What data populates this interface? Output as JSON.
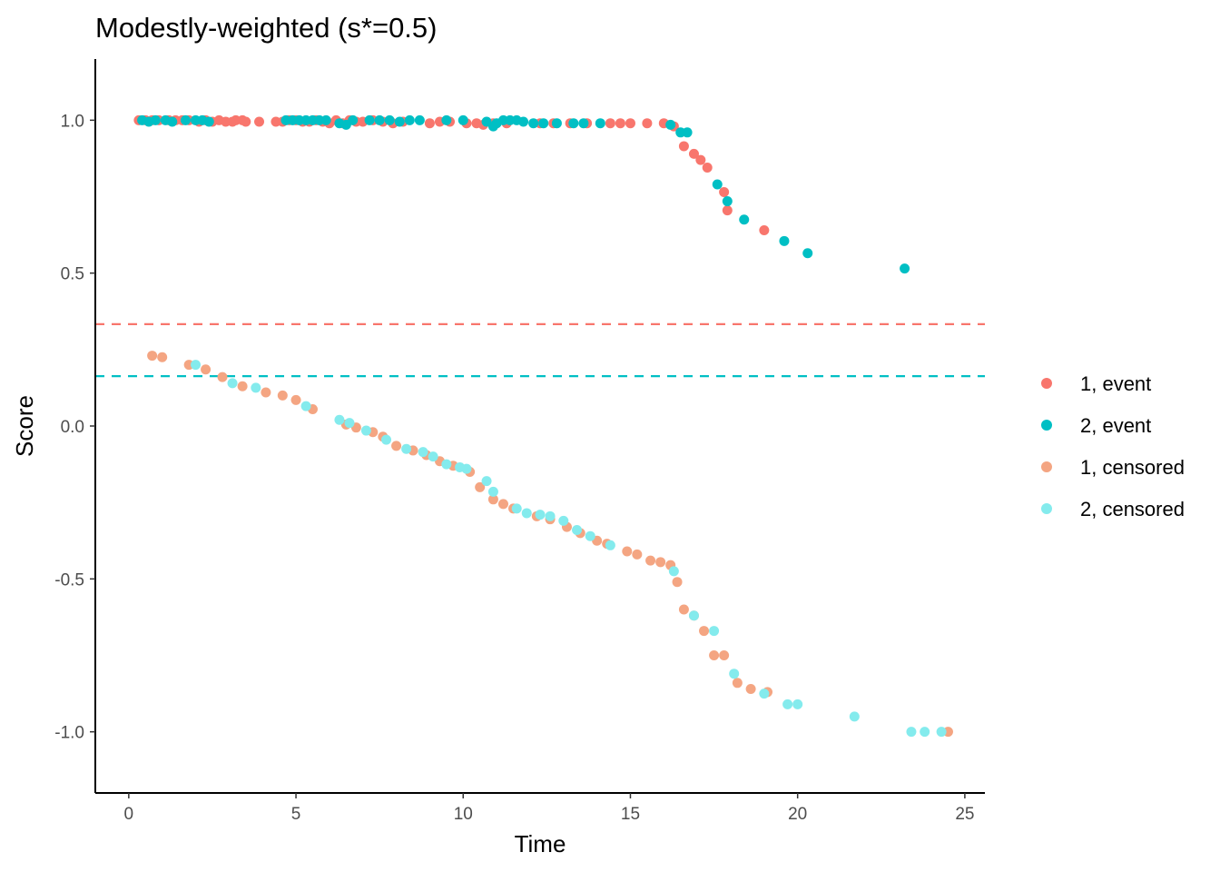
{
  "chart_data": {
    "type": "scatter",
    "title": "Modestly-weighted (s*=0.5)",
    "xlabel": "Time",
    "ylabel": "Score",
    "xlim": [
      -1.0,
      25.6
    ],
    "ylim": [
      -1.2,
      1.2
    ],
    "xticks": [
      0,
      5,
      10,
      15,
      20,
      25
    ],
    "xtick_labels": [
      "0",
      "5",
      "10",
      "15",
      "20",
      "25"
    ],
    "yticks": [
      1.0,
      0.5,
      0.0,
      -0.5,
      -1.0
    ],
    "ytick_labels": [
      "1.0",
      "0.5",
      "0.0",
      "-0.5",
      "-1.0"
    ],
    "grid": false,
    "legend_position": "right",
    "hlines": [
      {
        "y": 0.333,
        "color": "#F8766D",
        "style": "dashed"
      },
      {
        "y": 0.163,
        "color": "#00BFC4",
        "style": "dashed"
      }
    ],
    "series": [
      {
        "name": "1, event",
        "color": "#F8766D",
        "x": [
          0.3,
          0.5,
          0.7,
          0.9,
          1.2,
          1.4,
          1.6,
          1.8,
          2.1,
          2.3,
          2.5,
          2.7,
          2.9,
          3.1,
          3.2,
          3.4,
          3.5,
          3.9,
          4.4,
          4.6,
          4.8,
          5.0,
          5.2,
          5.4,
          5.6,
          5.8,
          6.0,
          6.2,
          6.4,
          6.6,
          6.8,
          7.0,
          7.3,
          7.6,
          7.9,
          8.2,
          9.0,
          9.3,
          9.6,
          10.1,
          10.4,
          10.6,
          10.9,
          11.3,
          12.3,
          12.7,
          13.2,
          13.7,
          14.4,
          14.7,
          15.0,
          15.5,
          16.0,
          16.3,
          16.6,
          16.9,
          17.1,
          17.3,
          17.8,
          17.9,
          19.0
        ],
        "y": [
          1.0,
          1.0,
          1.0,
          1.0,
          1.0,
          1.0,
          1.0,
          1.0,
          0.995,
          1.0,
          0.995,
          1.0,
          0.995,
          0.995,
          1.0,
          1.0,
          0.995,
          0.995,
          0.995,
          0.995,
          1.0,
          1.0,
          0.995,
          0.995,
          1.0,
          0.995,
          0.99,
          1.0,
          0.99,
          1.0,
          0.995,
          0.995,
          1.0,
          0.995,
          0.99,
          0.995,
          0.99,
          0.995,
          0.995,
          0.99,
          0.99,
          0.985,
          0.99,
          0.99,
          0.99,
          0.99,
          0.99,
          0.99,
          0.99,
          0.99,
          0.99,
          0.99,
          0.99,
          0.98,
          0.915,
          0.89,
          0.87,
          0.845,
          0.765,
          0.705,
          0.64
        ]
      },
      {
        "name": "2, event",
        "color": "#00BFC4",
        "x": [
          0.4,
          0.6,
          0.8,
          1.1,
          1.3,
          1.7,
          2.0,
          2.2,
          2.4,
          4.7,
          4.9,
          5.1,
          5.3,
          5.5,
          5.7,
          5.9,
          6.3,
          6.5,
          6.7,
          7.2,
          7.5,
          7.8,
          8.1,
          8.4,
          8.7,
          9.5,
          10.0,
          10.7,
          10.9,
          11.0,
          11.2,
          11.4,
          11.6,
          11.8,
          12.1,
          12.4,
          12.8,
          13.3,
          13.6,
          14.1,
          16.2,
          16.5,
          16.7,
          17.6,
          17.9,
          18.4,
          19.6,
          20.3,
          23.2
        ],
        "y": [
          1.0,
          0.995,
          1.0,
          1.0,
          0.995,
          1.0,
          1.0,
          1.0,
          0.995,
          1.0,
          1.0,
          1.0,
          1.0,
          1.0,
          1.0,
          1.0,
          0.99,
          0.985,
          1.0,
          1.0,
          1.0,
          1.0,
          0.995,
          1.0,
          1.0,
          1.0,
          1.0,
          0.995,
          0.98,
          0.99,
          1.0,
          1.0,
          1.0,
          0.995,
          0.99,
          0.99,
          0.99,
          0.99,
          0.99,
          0.99,
          0.985,
          0.96,
          0.96,
          0.79,
          0.735,
          0.675,
          0.605,
          0.565,
          0.515
        ]
      },
      {
        "name": "1, censored",
        "color": "#F4A582",
        "x": [
          0.7,
          1.0,
          1.8,
          2.3,
          2.8,
          3.4,
          4.1,
          4.6,
          5.0,
          5.5,
          6.5,
          6.8,
          7.3,
          7.6,
          8.0,
          8.5,
          8.9,
          9.3,
          9.7,
          10.2,
          10.5,
          10.9,
          11.2,
          11.5,
          12.2,
          12.6,
          13.1,
          13.5,
          14.0,
          14.3,
          14.9,
          15.2,
          15.6,
          15.9,
          16.2,
          16.4,
          16.6,
          16.9,
          17.2,
          17.5,
          17.8,
          18.2,
          18.6,
          19.1,
          24.5
        ],
        "y": [
          0.23,
          0.225,
          0.2,
          0.185,
          0.16,
          0.13,
          0.11,
          0.1,
          0.085,
          0.055,
          0.005,
          -0.005,
          -0.02,
          -0.035,
          -0.065,
          -0.08,
          -0.095,
          -0.115,
          -0.13,
          -0.15,
          -0.2,
          -0.24,
          -0.255,
          -0.27,
          -0.295,
          -0.305,
          -0.33,
          -0.35,
          -0.375,
          -0.385,
          -0.41,
          -0.42,
          -0.44,
          -0.445,
          -0.455,
          -0.51,
          -0.6,
          -0.62,
          -0.67,
          -0.75,
          -0.75,
          -0.84,
          -0.86,
          -0.87,
          -1.0
        ]
      },
      {
        "name": "2, censored",
        "color": "#84EBED",
        "x": [
          2.0,
          3.1,
          3.8,
          5.3,
          6.3,
          6.6,
          7.1,
          7.7,
          8.3,
          8.8,
          9.1,
          9.5,
          9.9,
          10.1,
          10.7,
          10.9,
          11.6,
          11.9,
          12.3,
          12.6,
          13.0,
          13.4,
          13.8,
          14.4,
          16.3,
          16.9,
          17.5,
          18.1,
          19.0,
          19.7,
          20.0,
          21.7,
          23.4,
          23.8,
          24.3
        ],
        "y": [
          0.2,
          0.14,
          0.125,
          0.065,
          0.02,
          0.01,
          -0.015,
          -0.045,
          -0.075,
          -0.085,
          -0.1,
          -0.125,
          -0.135,
          -0.14,
          -0.18,
          -0.215,
          -0.27,
          -0.285,
          -0.29,
          -0.295,
          -0.31,
          -0.34,
          -0.36,
          -0.39,
          -0.475,
          -0.62,
          -0.67,
          -0.81,
          -0.875,
          -0.91,
          -0.91,
          -0.95,
          -1.0,
          -1.0,
          -1.0
        ]
      }
    ]
  }
}
